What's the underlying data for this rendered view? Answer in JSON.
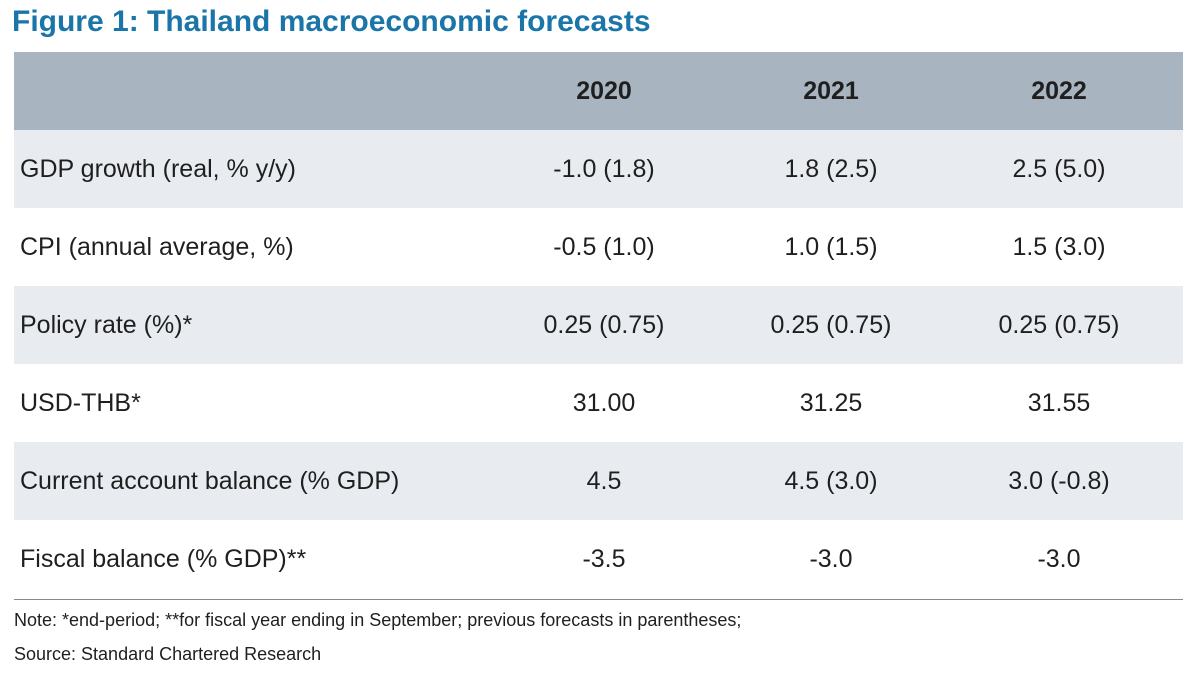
{
  "title": "Figure 1: Thailand macroeconomic forecasts",
  "table": {
    "columns": [
      "2020",
      "2021",
      "2022"
    ],
    "rows": [
      {
        "label": "GDP growth (real, % y/y)",
        "values": [
          "-1.0 (1.8)",
          "1.8 (2.5)",
          "2.5 (5.0)"
        ]
      },
      {
        "label": "CPI (annual average, %)",
        "values": [
          "-0.5 (1.0)",
          "1.0 (1.5)",
          "1.5 (3.0)"
        ]
      },
      {
        "label": "Policy rate (%)*",
        "values": [
          "0.25 (0.75)",
          "0.25 (0.75)",
          "0.25 (0.75)"
        ]
      },
      {
        "label": "USD-THB*",
        "values": [
          "31.00",
          "31.25",
          "31.55"
        ]
      },
      {
        "label": "Current account balance (% GDP)",
        "values": [
          "4.5",
          "4.5 (3.0)",
          "3.0 (-0.8)"
        ]
      },
      {
        "label": "Fiscal balance (% GDP)**",
        "values": [
          "-3.5",
          "-3.0",
          "-3.0"
        ]
      }
    ]
  },
  "note": "Note: *end-period; **for fiscal year ending in September; previous forecasts in parentheses;",
  "source": "Source: Standard Chartered Research",
  "colors": {
    "title": "#1a75a8",
    "header_bg": "#a8b4bf",
    "shaded_row_bg": "#e8ecf1"
  }
}
